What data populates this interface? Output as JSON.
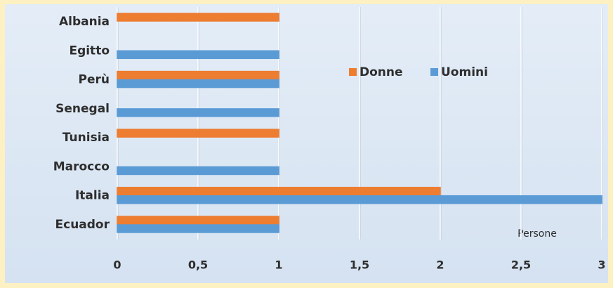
{
  "chart_data": {
    "type": "bar",
    "orientation": "horizontal",
    "categories": [
      "Albania",
      "Egitto",
      "Perù",
      "Senegal",
      "Tunisia",
      "Marocco",
      "Italia",
      "Ecuador"
    ],
    "series": [
      {
        "name": "Donne",
        "color": "#ed7d31",
        "values": [
          1,
          0,
          1,
          0,
          1,
          0,
          2,
          1
        ]
      },
      {
        "name": "Uomini",
        "color": "#5b9bd5",
        "values": [
          0,
          1,
          1,
          1,
          0,
          1,
          3,
          1
        ]
      }
    ],
    "x_label": "Persone",
    "xlim": [
      0,
      3
    ],
    "xticks": [
      0,
      {
        "value": 0.5,
        "label": "0,5"
      },
      1,
      {
        "value": 1.5,
        "label": "1,5"
      },
      2,
      {
        "value": 2.5,
        "label": "2,5"
      },
      3
    ],
    "grid": true,
    "legend": "center"
  }
}
